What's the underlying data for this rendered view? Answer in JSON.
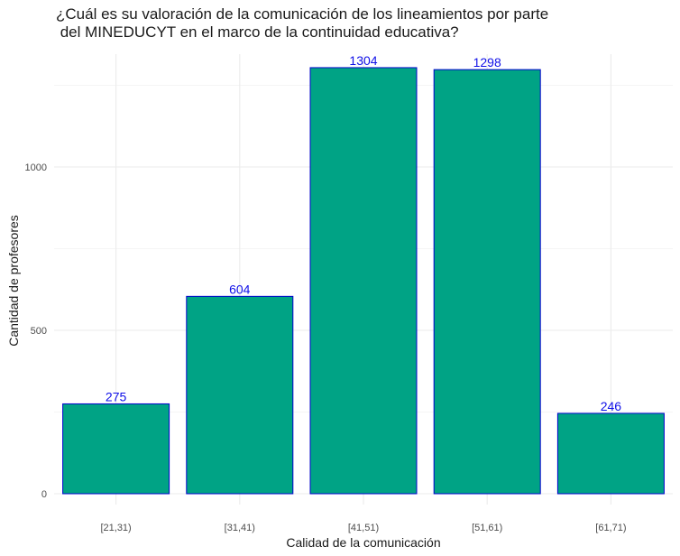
{
  "chart_data": {
    "type": "bar",
    "title_lines": [
      "¿Cuál es su valoración de la comunicación de los lineamientos por parte",
      " del MINEDUCYT en el marco de la continuidad educativa?"
    ],
    "categories": [
      "[21,31)",
      "[31,41)",
      "[41,51)",
      "[51,61)",
      "[61,71)"
    ],
    "values": [
      275,
      604,
      1304,
      1298,
      246
    ],
    "data_labels": [
      "275",
      "604",
      "1304",
      "1298",
      "246"
    ],
    "xlabel": "Calidad de la comunicación",
    "ylabel": "Cantidad de profesores",
    "yticks": [
      0,
      500,
      1000
    ],
    "ylim": [
      0,
      1370
    ],
    "grid": true,
    "legend": "none",
    "colors": {
      "bar_fill": "#00A385",
      "bar_stroke": "#0000CD",
      "label": "#1010E8",
      "grid": "#EBEBEB"
    }
  }
}
